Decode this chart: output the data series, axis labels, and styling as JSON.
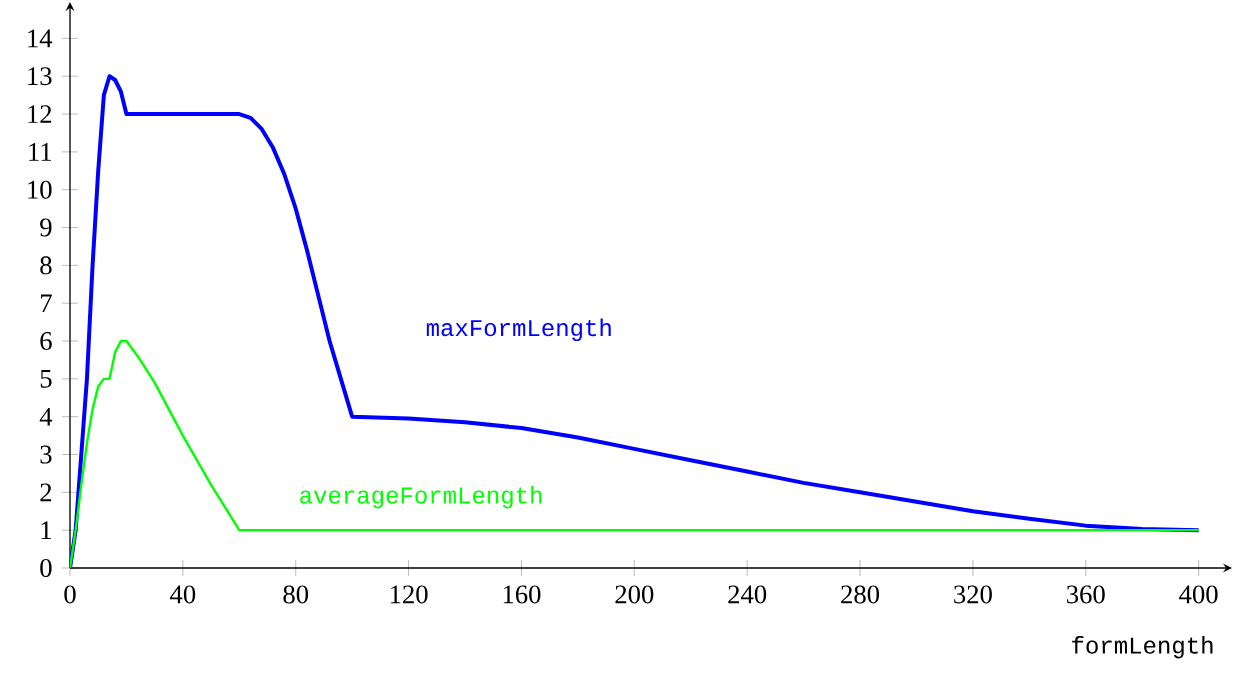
{
  "chart_data": {
    "type": "line",
    "xlabel": "formLength",
    "xlim": [
      0,
      409
    ],
    "ylim": [
      0,
      14.75
    ],
    "xticks": [
      0,
      40,
      80,
      120,
      160,
      200,
      240,
      280,
      320,
      360,
      400
    ],
    "yticks": [
      0,
      1,
      2,
      3,
      4,
      5,
      6,
      7,
      8,
      9,
      10,
      11,
      12,
      13,
      14
    ],
    "grid": false,
    "marker": "none",
    "line_style": "solid",
    "series": [
      {
        "name": "maxFormLength",
        "color": "#0000ff",
        "x": [
          0,
          2,
          4,
          6,
          8,
          10,
          12,
          14,
          16,
          18,
          20,
          40,
          60,
          64,
          68,
          72,
          76,
          80,
          84,
          88,
          92,
          96,
          100,
          120,
          140,
          160,
          180,
          200,
          220,
          240,
          260,
          280,
          300,
          320,
          340,
          360,
          380,
          400
        ],
        "values": [
          0,
          1,
          3,
          5,
          8,
          10.5,
          12.5,
          13,
          12.9,
          12.6,
          12,
          12,
          12,
          11.9,
          11.6,
          11.1,
          10.4,
          9.5,
          8.4,
          7.2,
          6,
          5,
          4,
          3.95,
          3.85,
          3.7,
          3.45,
          3.15,
          2.85,
          2.55,
          2.25,
          2.0,
          1.75,
          1.5,
          1.3,
          1.12,
          1.03,
          1
        ]
      },
      {
        "name": "averageFormLength",
        "color": "#00ff00",
        "x": [
          0,
          2,
          4,
          6,
          8,
          10,
          12,
          14,
          16,
          18,
          20,
          24,
          30,
          40,
          50,
          60,
          400
        ],
        "values": [
          0,
          1,
          2.2,
          3.3,
          4.2,
          4.8,
          5,
          5,
          5.7,
          6,
          6,
          5.6,
          4.9,
          3.5,
          2.2,
          1,
          1
        ]
      }
    ]
  }
}
